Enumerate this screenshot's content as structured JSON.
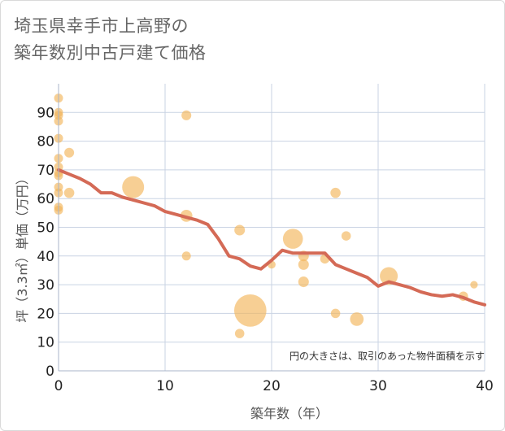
{
  "title_line1": "埼玉県幸手市上高野の",
  "title_line2": "築年数別中古戸建て価格",
  "colors": {
    "bubble": "#f3b65a",
    "line": "#d46a56",
    "grid": "#c9d3e3",
    "axis": "#aab5c8",
    "text": "#666666"
  },
  "chart_data": {
    "type": "scatter",
    "xlabel": "築年数（年）",
    "ylabel": "坪（3.3㎡）単価（万円）",
    "xlim": [
      0,
      40
    ],
    "ylim": [
      0,
      100
    ],
    "xticks": [
      0,
      10,
      20,
      30,
      40
    ],
    "yticks": [
      0,
      10,
      20,
      30,
      40,
      50,
      60,
      70,
      80,
      90
    ],
    "grid": true,
    "note": "円の大きさは、取引のあった物件面積を示す",
    "points": [
      {
        "x": 0,
        "y": 95,
        "size": 1
      },
      {
        "x": 0,
        "y": 90,
        "size": 1
      },
      {
        "x": 0,
        "y": 89,
        "size": 1
      },
      {
        "x": 0,
        "y": 87,
        "size": 1
      },
      {
        "x": 0,
        "y": 81,
        "size": 1
      },
      {
        "x": 0,
        "y": 74,
        "size": 1
      },
      {
        "x": 0,
        "y": 71,
        "size": 1
      },
      {
        "x": 0,
        "y": 69,
        "size": 1
      },
      {
        "x": 0,
        "y": 68,
        "size": 1
      },
      {
        "x": 0,
        "y": 64,
        "size": 1
      },
      {
        "x": 0,
        "y": 62,
        "size": 1
      },
      {
        "x": 0,
        "y": 57,
        "size": 1
      },
      {
        "x": 0,
        "y": 56,
        "size": 1
      },
      {
        "x": 1,
        "y": 76,
        "size": 1.2
      },
      {
        "x": 1,
        "y": 62,
        "size": 1.3
      },
      {
        "x": 7,
        "y": 64,
        "size": 6
      },
      {
        "x": 12,
        "y": 89,
        "size": 1.2
      },
      {
        "x": 12,
        "y": 54,
        "size": 1.8
      },
      {
        "x": 12,
        "y": 40,
        "size": 1
      },
      {
        "x": 17,
        "y": 49,
        "size": 1.4
      },
      {
        "x": 17,
        "y": 13,
        "size": 1.1
      },
      {
        "x": 18,
        "y": 21,
        "size": 13
      },
      {
        "x": 20,
        "y": 37,
        "size": 0.8
      },
      {
        "x": 22,
        "y": 46,
        "size": 5
      },
      {
        "x": 23,
        "y": 40,
        "size": 1.4
      },
      {
        "x": 23,
        "y": 37,
        "size": 1.4
      },
      {
        "x": 23,
        "y": 31,
        "size": 1.4
      },
      {
        "x": 25,
        "y": 39,
        "size": 1.1
      },
      {
        "x": 26,
        "y": 62,
        "size": 1.3
      },
      {
        "x": 26,
        "y": 20,
        "size": 1.1
      },
      {
        "x": 27,
        "y": 47,
        "size": 1.1
      },
      {
        "x": 28,
        "y": 18,
        "size": 2.3
      },
      {
        "x": 31,
        "y": 33,
        "size": 4
      },
      {
        "x": 38,
        "y": 26,
        "size": 1.1
      },
      {
        "x": 39,
        "y": 30,
        "size": 0.7
      }
    ],
    "trend": {
      "x": [
        0,
        1,
        2,
        3,
        4,
        5,
        6,
        7,
        8,
        9,
        10,
        11,
        12,
        13,
        14,
        15,
        16,
        17,
        18,
        19,
        20,
        21,
        22,
        23,
        24,
        25,
        26,
        27,
        28,
        29,
        30,
        31,
        32,
        33,
        34,
        35,
        36,
        37,
        38,
        39,
        40
      ],
      "y": [
        70,
        68.5,
        67,
        65,
        62,
        62,
        60.5,
        59.5,
        58.5,
        57.5,
        55.5,
        54.5,
        53.5,
        52.5,
        51,
        46,
        40,
        39,
        36.5,
        35.5,
        38.5,
        42,
        41,
        41,
        41,
        41,
        37,
        35.5,
        34,
        32.5,
        29.5,
        31,
        30,
        29,
        27.5,
        26.5,
        26,
        26.5,
        25.5,
        24,
        23
      ]
    }
  }
}
